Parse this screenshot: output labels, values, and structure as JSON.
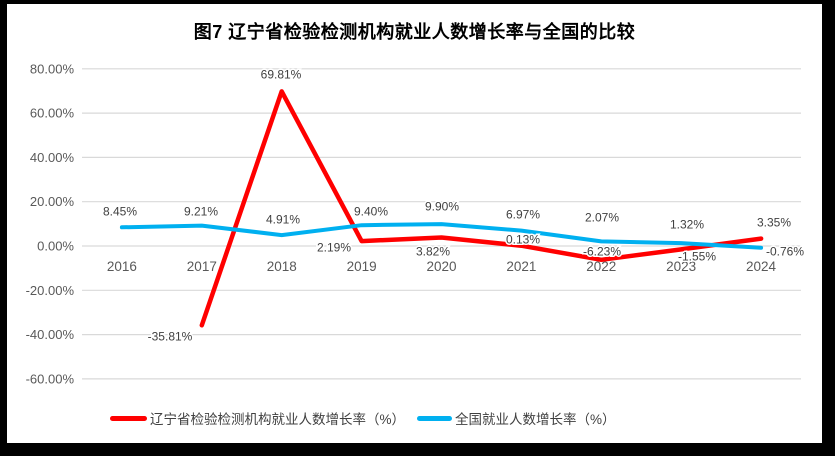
{
  "chart_data": {
    "type": "line",
    "title": "图7 辽宁省检验检测机构就业人数增长率与全国的比较",
    "categories": [
      "2016",
      "2017",
      "2018",
      "2019",
      "2020",
      "2021",
      "2022",
      "2023",
      "2024"
    ],
    "series": [
      {
        "name": "辽宁省检验检测机构就业人数增长率（%）",
        "key": "liaoning",
        "color": "#FF0000",
        "values": [
          null,
          -35.81,
          69.81,
          2.19,
          3.82,
          0.13,
          -6.23,
          -1.55,
          3.35
        ],
        "labels": [
          "",
          "-35.81%",
          "69.81%",
          "2.19%",
          "3.82%",
          "0.13%",
          "-6.23%",
          "-1.55%",
          "3.35%"
        ]
      },
      {
        "name": "全国就业人数增长率（%）",
        "key": "national",
        "color": "#00B0F0",
        "values": [
          8.45,
          9.21,
          4.91,
          9.4,
          9.9,
          6.97,
          2.07,
          1.32,
          -0.76
        ],
        "labels": [
          "8.45%",
          "9.21%",
          "4.91%",
          "9.40%",
          "9.90%",
          "6.97%",
          "2.07%",
          "1.32%",
          "-0.76%"
        ]
      }
    ],
    "y_axis": {
      "min": -60,
      "max": 80,
      "step": 20,
      "tick_labels": [
        "80.00%",
        "60.00%",
        "40.00%",
        "20.00%",
        "0.00%",
        "-20.00%",
        "-40.00%",
        "-60.00%"
      ]
    },
    "grid": true,
    "legend_position": "bottom",
    "colors": {
      "grid": "#D9D9D9",
      "axis_text": "#595959",
      "data_label_text": "#404040",
      "title_text": "#000000",
      "background": "#FFFFFF",
      "frame": "#000000"
    }
  }
}
